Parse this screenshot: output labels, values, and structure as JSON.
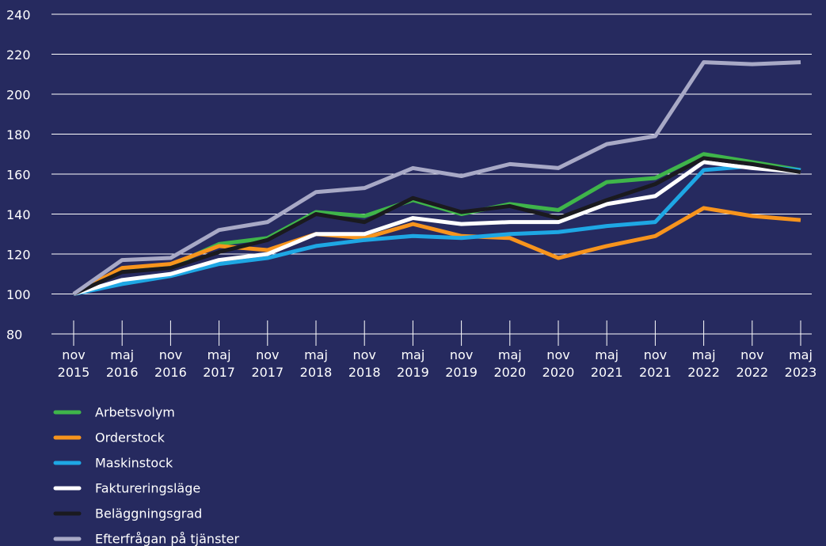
{
  "chart_data": {
    "type": "line",
    "categories": [
      "nov 2015",
      "maj 2016",
      "nov 2016",
      "maj 2017",
      "nov 2017",
      "maj 2018",
      "nov 2018",
      "maj 2019",
      "nov 2019",
      "maj 2020",
      "nov 2020",
      "maj 2021",
      "nov 2021",
      "maj 2022",
      "nov 2022",
      "maj 2023"
    ],
    "series": [
      {
        "name": "Arbetsvolym",
        "color": "#3fb54a",
        "values": [
          100,
          112,
          114,
          125,
          128,
          141,
          139,
          147,
          140,
          145,
          142,
          156,
          158,
          170,
          166,
          162
        ]
      },
      {
        "name": "Orderstock",
        "color": "#f7941d",
        "values": [
          100,
          113,
          115,
          124,
          122,
          130,
          128,
          135,
          129,
          128,
          118,
          124,
          129,
          143,
          139,
          137
        ]
      },
      {
        "name": "Maskinstock",
        "color": "#1ea7e4",
        "values": [
          100,
          105,
          109,
          115,
          118,
          124,
          127,
          129,
          128,
          130,
          131,
          134,
          136,
          162,
          164,
          162
        ]
      },
      {
        "name": "Faktureringsläge",
        "color": "#ffffff",
        "values": [
          100,
          107,
          110,
          117,
          120,
          130,
          130,
          138,
          135,
          136,
          136,
          145,
          149,
          166,
          163,
          161
        ]
      },
      {
        "name": "Beläggningsgrad",
        "color": "#1a1a1f",
        "values": [
          100,
          111,
          113,
          121,
          127,
          140,
          136,
          148,
          141,
          144,
          138,
          147,
          155,
          168,
          165,
          161
        ]
      },
      {
        "name": "Efterfrågan på tjänster",
        "color": "#a8a9c6",
        "values": [
          100,
          117,
          118,
          132,
          136,
          151,
          153,
          163,
          159,
          165,
          163,
          175,
          179,
          216,
          215,
          216
        ]
      }
    ],
    "ylim": [
      80,
      240
    ],
    "yticks": [
      80,
      100,
      120,
      140,
      160,
      180,
      200,
      220,
      240
    ],
    "grid": true
  }
}
